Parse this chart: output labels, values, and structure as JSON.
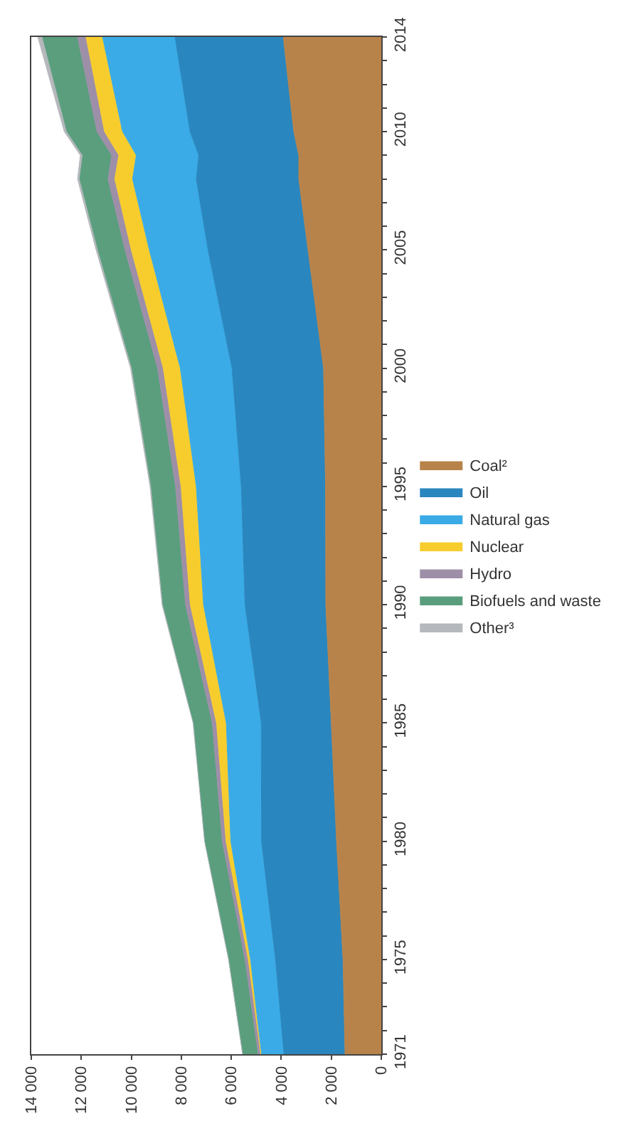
{
  "chart_data": {
    "type": "area",
    "stacked": true,
    "orientation": "horizontal",
    "x": [
      1971,
      1975,
      1980,
      1985,
      1990,
      1995,
      2000,
      2005,
      2008,
      2009,
      2010,
      2014
    ],
    "series": [
      {
        "name": "Coal²",
        "color": "#b8834a",
        "values": [
          1450,
          1530,
          1790,
          2000,
          2220,
          2230,
          2310,
          2930,
          3300,
          3300,
          3500,
          3920
        ]
      },
      {
        "name": "Oil",
        "color": "#2a86be",
        "values": [
          2440,
          2700,
          3000,
          2800,
          3230,
          3370,
          3660,
          4000,
          4100,
          4000,
          4150,
          4330
        ]
      },
      {
        "name": "Natural gas",
        "color": "#3aabe6",
        "values": [
          900,
          1000,
          1230,
          1400,
          1660,
          1800,
          2070,
          2350,
          2550,
          2500,
          2700,
          2900
        ]
      },
      {
        "name": "Nuclear",
        "color": "#f7cd2e",
        "values": [
          30,
          90,
          190,
          390,
          530,
          610,
          680,
          720,
          710,
          700,
          720,
          660
        ]
      },
      {
        "name": "Hydro",
        "color": "#9e8fa8",
        "values": [
          100,
          130,
          150,
          170,
          190,
          220,
          230,
          250,
          270,
          280,
          300,
          340
        ]
      },
      {
        "name": "Biofuels and waste",
        "color": "#5a9e7e",
        "values": [
          620,
          650,
          700,
          750,
          900,
          970,
          1020,
          1080,
          1130,
          1160,
          1200,
          1400
        ]
      },
      {
        "name": "Other³",
        "color": "#b5b8bc",
        "values": [
          10,
          10,
          10,
          20,
          40,
          50,
          60,
          80,
          90,
          100,
          110,
          190
        ]
      }
    ],
    "xlim": [
      14000,
      0
    ],
    "xticks": [
      {
        "value": 14000,
        "label": "14 000"
      },
      {
        "value": 12000,
        "label": "12 000"
      },
      {
        "value": 10000,
        "label": "10 000"
      },
      {
        "value": 8000,
        "label": "8 000"
      },
      {
        "value": 6000,
        "label": "6 000"
      },
      {
        "value": 4000,
        "label": "4 000"
      },
      {
        "value": 2000,
        "label": "2 000"
      },
      0
    ],
    "ylim": [
      1971,
      2014
    ],
    "yticks": [
      1971,
      {
        "value": 1972,
        "label": null
      },
      {
        "value": 1973,
        "label": null
      },
      {
        "value": 1974,
        "label": null
      },
      1975,
      {
        "value": 1976,
        "label": null
      },
      {
        "value": 1977,
        "label": null
      },
      {
        "value": 1978,
        "label": null
      },
      {
        "value": 1979,
        "label": null
      },
      1980,
      {
        "value": 1981,
        "label": null
      },
      {
        "value": 1982,
        "label": null
      },
      {
        "value": 1983,
        "label": null
      },
      {
        "value": 1984,
        "label": null
      },
      1985,
      {
        "value": 1986,
        "label": null
      },
      {
        "value": 1987,
        "label": null
      },
      {
        "value": 1988,
        "label": null
      },
      {
        "value": 1989,
        "label": null
      },
      1990,
      {
        "value": 1991,
        "label": null
      },
      {
        "value": 1992,
        "label": null
      },
      {
        "value": 1993,
        "label": null
      },
      {
        "value": 1994,
        "label": null
      },
      1995,
      {
        "value": 1996,
        "label": null
      },
      {
        "value": 1997,
        "label": null
      },
      {
        "value": 1998,
        "label": null
      },
      {
        "value": 1999,
        "label": null
      },
      2000,
      {
        "value": 2001,
        "label": null
      },
      {
        "value": 2002,
        "label": null
      },
      {
        "value": 2003,
        "label": null
      },
      {
        "value": 2004,
        "label": null
      },
      2005,
      {
        "value": 2006,
        "label": null
      },
      {
        "value": 2007,
        "label": null
      },
      {
        "value": 2008,
        "label": null
      },
      {
        "value": 2009,
        "label": null
      },
      2010,
      {
        "value": 2011,
        "label": null
      },
      {
        "value": 2012,
        "label": null
      },
      {
        "value": 2013,
        "label": null
      },
      2014
    ],
    "legend": "right"
  }
}
